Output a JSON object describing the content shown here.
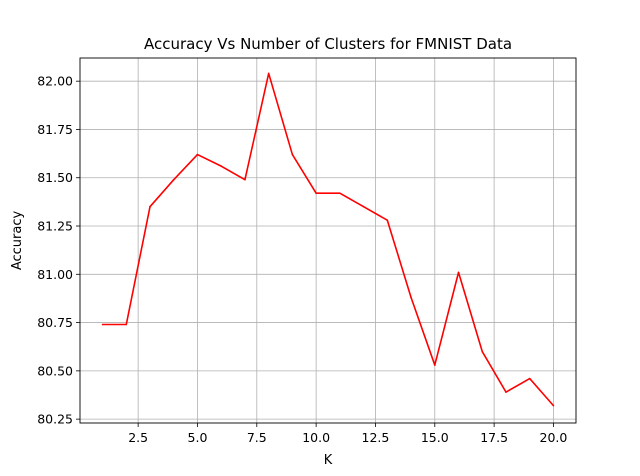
{
  "chart_data": {
    "type": "line",
    "title": "Accuracy Vs Number of Clusters for FMNIST Data",
    "xlabel": "K",
    "ylabel": "Accuracy",
    "xlim": [
      0.05,
      20.95
    ],
    "ylim": [
      80.23,
      82.12
    ],
    "xticks": [
      2.5,
      5.0,
      7.5,
      10.0,
      12.5,
      15.0,
      17.5,
      20.0
    ],
    "xtick_labels": [
      "2.5",
      "5.0",
      "7.5",
      "10.0",
      "12.5",
      "15.0",
      "17.5",
      "20.0"
    ],
    "yticks": [
      80.25,
      80.5,
      80.75,
      81.0,
      81.25,
      81.5,
      81.75,
      82.0
    ],
    "ytick_labels": [
      "80.25",
      "80.50",
      "80.75",
      "81.00",
      "81.25",
      "81.50",
      "81.75",
      "82.00"
    ],
    "grid": true,
    "series": [
      {
        "color": "#ff0000",
        "x": [
          1,
          2,
          3,
          4,
          5,
          6,
          7,
          8,
          9,
          10,
          11,
          12,
          13,
          14,
          15,
          16,
          17,
          18,
          19,
          20
        ],
        "values": [
          80.74,
          80.74,
          81.35,
          81.49,
          81.62,
          81.56,
          81.49,
          82.04,
          81.62,
          81.42,
          81.42,
          81.35,
          81.28,
          80.88,
          80.53,
          81.01,
          80.6,
          80.39,
          80.46,
          80.32
        ]
      }
    ]
  }
}
